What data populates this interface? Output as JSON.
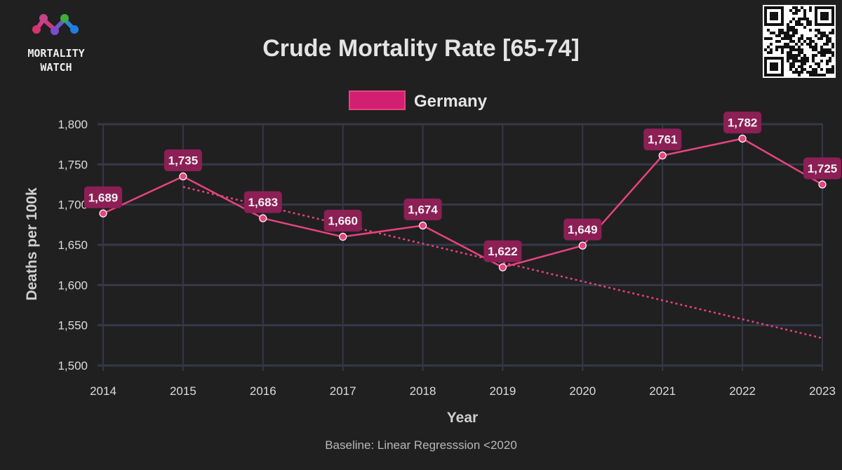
{
  "logo": {
    "line1": "MORTALITY",
    "line2": "WATCH"
  },
  "chart_data": {
    "type": "line",
    "title": "Crude Mortality Rate [65-74]",
    "xlabel": "Year",
    "ylabel": "Deaths per 100k",
    "caption": "Baseline: Linear Regresssion <2020",
    "legend": {
      "position": "top-center"
    },
    "grid": true,
    "categories": [
      "2014",
      "2015",
      "2016",
      "2017",
      "2018",
      "2019",
      "2020",
      "2021",
      "2022",
      "2023"
    ],
    "ylim": [
      1500,
      1800
    ],
    "yticks": [
      1500,
      1550,
      1600,
      1650,
      1700,
      1750,
      1800
    ],
    "ytick_labels": [
      "1,500",
      "1,550",
      "1,600",
      "1,650",
      "1,700",
      "1,750",
      "1,800"
    ],
    "series": [
      {
        "name": "Germany",
        "color": "#e8437f",
        "values": [
          1689,
          1735,
          1683,
          1660,
          1674,
          1622,
          1649,
          1761,
          1782,
          1725
        ],
        "labels": [
          "1,689",
          "1,735",
          "1,683",
          "1,660",
          "1,674",
          "1,622",
          "1,649",
          "1,761",
          "1,782",
          "1,725"
        ]
      }
    ],
    "baseline": {
      "style": "dotted",
      "color": "#e8437f",
      "x": [
        "2015",
        "2023"
      ],
      "values": [
        1722,
        1534
      ]
    }
  },
  "colors": {
    "background": "#202020",
    "grid": "#353848",
    "text": "#dcdcdc",
    "label_box": "#8c1f55",
    "legend_fill": "#d31f72",
    "legend_stroke": "#e8437f"
  }
}
